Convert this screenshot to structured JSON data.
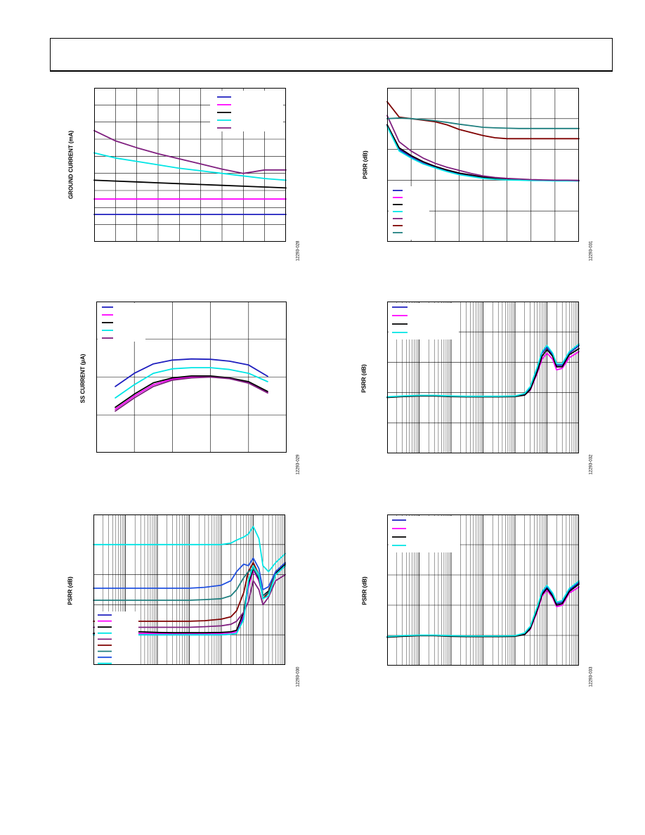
{
  "page": {
    "header_title": ""
  },
  "chart_data": [
    {
      "id": "ground-current",
      "type": "line",
      "title": "",
      "xlabel": "",
      "ylabel": "GROUND CURRENT (mA)",
      "figure_id": "12293-028",
      "xscale": "linear",
      "xlim": [
        0,
        9
      ],
      "ylim": [
        0,
        9
      ],
      "grid": true,
      "legend_position": "top-right",
      "x": [
        0,
        1,
        2,
        3,
        4,
        5,
        6,
        7,
        8,
        9
      ],
      "series": [
        {
          "color": "#1f1fbf",
          "values": [
            1.6,
            1.6,
            1.6,
            1.6,
            1.6,
            1.6,
            1.6,
            1.6,
            1.6,
            1.6
          ]
        },
        {
          "color": "#ff00ff",
          "values": [
            2.5,
            2.5,
            2.5,
            2.5,
            2.5,
            2.5,
            2.5,
            2.5,
            2.5,
            2.5
          ]
        },
        {
          "color": "#000000",
          "values": [
            3.6,
            3.55,
            3.5,
            3.45,
            3.4,
            3.35,
            3.3,
            3.25,
            3.2,
            3.15
          ]
        },
        {
          "color": "#00e5e5",
          "values": [
            5.2,
            4.9,
            4.7,
            4.5,
            4.3,
            4.15,
            4.0,
            3.85,
            3.7,
            3.6
          ]
        },
        {
          "color": "#7f1f7f",
          "values": [
            6.5,
            5.9,
            5.5,
            5.15,
            4.85,
            4.55,
            4.25,
            4.0,
            4.2,
            4.2
          ]
        }
      ]
    },
    {
      "id": "psrr-1",
      "type": "line",
      "title": "",
      "xlabel": "",
      "ylabel": "PSRR (dB)",
      "figure_id": "12293-031",
      "xscale": "linear",
      "xlim": [
        0,
        8
      ],
      "ylim": [
        0,
        5
      ],
      "grid": true,
      "legend_position": "bottom-left",
      "x": [
        0,
        0.5,
        1,
        1.5,
        2,
        2.5,
        3,
        3.5,
        4,
        4.5,
        5,
        5.5,
        6,
        6.5,
        7,
        7.5,
        8
      ],
      "series": [
        {
          "color": "#1f1fbf",
          "values": [
            3.8,
            3.0,
            2.75,
            2.55,
            2.42,
            2.3,
            2.2,
            2.15,
            2.08,
            2.05,
            2.03,
            2.01,
            2.0,
            2.0,
            1.99,
            1.99,
            1.98
          ]
        },
        {
          "color": "#ff00ff",
          "values": [
            3.8,
            3.05,
            2.8,
            2.6,
            2.45,
            2.33,
            2.23,
            2.17,
            2.1,
            2.06,
            2.04,
            2.02,
            2.01,
            2.0,
            2.0,
            1.99,
            1.99
          ]
        },
        {
          "color": "#000000",
          "values": [
            3.8,
            3.05,
            2.8,
            2.6,
            2.45,
            2.33,
            2.23,
            2.17,
            2.1,
            2.06,
            2.04,
            2.02,
            2.01,
            2.0,
            2.0,
            1.99,
            1.99
          ]
        },
        {
          "color": "#00e5e5",
          "values": [
            3.75,
            2.95,
            2.72,
            2.53,
            2.4,
            2.28,
            2.18,
            2.12,
            2.06,
            2.03,
            2.01,
            2.0,
            1.99,
            1.99,
            1.98,
            1.98,
            1.98
          ]
        },
        {
          "color": "#7f1f7f",
          "values": [
            4.1,
            3.25,
            2.95,
            2.72,
            2.55,
            2.42,
            2.32,
            2.22,
            2.14,
            2.09,
            2.06,
            2.04,
            2.02,
            2.01,
            2.0,
            2.0,
            1.99
          ]
        },
        {
          "color": "#7f0000",
          "values": [
            4.55,
            4.05,
            4.0,
            3.95,
            3.9,
            3.8,
            3.65,
            3.55,
            3.45,
            3.38,
            3.35,
            3.35,
            3.35,
            3.35,
            3.35,
            3.35,
            3.35
          ]
        },
        {
          "color": "#1f7f7f",
          "values": [
            4.0,
            4.02,
            4.0,
            3.97,
            3.93,
            3.88,
            3.82,
            3.77,
            3.72,
            3.7,
            3.69,
            3.68,
            3.68,
            3.68,
            3.68,
            3.68,
            3.68
          ]
        }
      ]
    },
    {
      "id": "ss-current",
      "type": "line",
      "title": "",
      "xlabel": "",
      "ylabel": "SS CURRENT (µA)",
      "figure_id": "12293-029",
      "xscale": "linear",
      "xlim": [
        0,
        5
      ],
      "ylim": [
        0,
        4
      ],
      "grid": true,
      "legend_position": "top-left",
      "x": [
        0.5,
        1,
        1.5,
        2,
        2.5,
        3,
        3.5,
        4,
        4.5
      ],
      "series": [
        {
          "color": "#1f1fbf",
          "values": [
            1.75,
            2.1,
            2.35,
            2.45,
            2.48,
            2.47,
            2.42,
            2.32,
            2.02
          ]
        },
        {
          "color": "#ff00ff",
          "values": [
            1.15,
            1.5,
            1.8,
            1.95,
            2.0,
            2.02,
            1.97,
            1.85,
            1.6
          ]
        },
        {
          "color": "#000000",
          "values": [
            1.2,
            1.55,
            1.85,
            1.98,
            2.03,
            2.03,
            1.98,
            1.88,
            1.62
          ]
        },
        {
          "color": "#00e5e5",
          "values": [
            1.45,
            1.8,
            2.1,
            2.22,
            2.25,
            2.25,
            2.2,
            2.1,
            1.88
          ]
        },
        {
          "color": "#7f1f7f",
          "values": [
            1.1,
            1.45,
            1.75,
            1.92,
            1.98,
            2.0,
            1.96,
            1.84,
            1.58
          ]
        }
      ]
    },
    {
      "id": "psrr-2",
      "type": "line",
      "title": "",
      "xlabel": "",
      "ylabel": "PSRR (dB)",
      "figure_id": "12293-032",
      "xscale": "log",
      "xlim": [
        10,
        10000000
      ],
      "ylim": [
        0,
        5
      ],
      "grid": true,
      "legend_position": "top-left",
      "x": [
        10,
        30,
        100,
        300,
        1000,
        3000,
        10000,
        30000,
        100000,
        200000,
        300000,
        500000,
        700000,
        1000000,
        1500000,
        2000000,
        3000000,
        5000000,
        10000000
      ],
      "series": [
        {
          "color": "#1f1fbf",
          "values": [
            1.85,
            1.88,
            1.9,
            1.9,
            1.88,
            1.87,
            1.87,
            1.87,
            1.88,
            1.95,
            2.15,
            2.8,
            3.3,
            3.5,
            3.25,
            2.9,
            2.9,
            3.3,
            3.55
          ]
        },
        {
          "color": "#ff00ff",
          "values": [
            1.85,
            1.88,
            1.9,
            1.9,
            1.88,
            1.87,
            1.87,
            1.87,
            1.88,
            1.92,
            2.08,
            2.65,
            3.1,
            3.3,
            3.1,
            2.75,
            2.8,
            3.15,
            3.35
          ]
        },
        {
          "color": "#000000",
          "values": [
            1.84,
            1.87,
            1.89,
            1.89,
            1.87,
            1.86,
            1.86,
            1.86,
            1.87,
            1.92,
            2.1,
            2.7,
            3.2,
            3.42,
            3.2,
            2.85,
            2.85,
            3.25,
            3.45
          ]
        },
        {
          "color": "#00e5e5",
          "values": [
            1.86,
            1.89,
            1.91,
            1.91,
            1.89,
            1.88,
            1.88,
            1.88,
            1.89,
            1.97,
            2.2,
            2.85,
            3.35,
            3.55,
            3.3,
            2.95,
            2.95,
            3.35,
            3.6
          ]
        }
      ]
    },
    {
      "id": "psrr-3",
      "type": "line",
      "title": "",
      "xlabel": "",
      "ylabel": "PSRR (dB)",
      "figure_id": "12293-030",
      "xscale": "log",
      "xlim": [
        10,
        10000000
      ],
      "ylim": [
        0,
        5
      ],
      "grid": true,
      "legend_position": "bottom-left",
      "x": [
        10,
        30,
        100,
        300,
        1000,
        3000,
        10000,
        30000,
        100000,
        200000,
        300000,
        500000,
        700000,
        1000000,
        1500000,
        2000000,
        3000000,
        5000000,
        10000000
      ],
      "series": [
        {
          "color": "#1f1fbf",
          "values": [
            1.0,
            1.0,
            1.0,
            1.0,
            1.0,
            1.0,
            1.0,
            1.0,
            1.0,
            1.02,
            1.05,
            1.6,
            2.6,
            3.2,
            2.8,
            2.3,
            2.4,
            3.0,
            3.3
          ]
        },
        {
          "color": "#ff00ff",
          "values": [
            1.05,
            1.05,
            1.05,
            1.05,
            1.05,
            1.05,
            1.05,
            1.05,
            1.05,
            1.07,
            1.1,
            1.7,
            2.6,
            3.15,
            2.8,
            2.3,
            2.45,
            3.0,
            3.3
          ]
        },
        {
          "color": "#000000",
          "values": [
            1.05,
            1.08,
            1.1,
            1.1,
            1.08,
            1.07,
            1.07,
            1.07,
            1.08,
            1.1,
            1.15,
            1.75,
            2.7,
            3.2,
            2.85,
            2.3,
            2.45,
            3.05,
            3.35
          ]
        },
        {
          "color": "#00e5e5",
          "values": [
            4.0,
            4.0,
            4.0,
            4.0,
            4.0,
            4.0,
            4.0,
            4.0,
            4.0,
            4.05,
            4.15,
            4.25,
            4.35,
            4.6,
            4.2,
            3.3,
            3.1,
            3.4,
            3.7
          ]
        },
        {
          "color": "#7f1f7f",
          "values": [
            1.25,
            1.25,
            1.25,
            1.25,
            1.25,
            1.25,
            1.25,
            1.27,
            1.3,
            1.35,
            1.45,
            1.75,
            2.1,
            2.8,
            2.5,
            2.0,
            2.25,
            2.8,
            3.0
          ]
        },
        {
          "color": "#7f0000",
          "values": [
            1.45,
            1.45,
            1.45,
            1.45,
            1.45,
            1.45,
            1.45,
            1.47,
            1.52,
            1.6,
            1.8,
            2.4,
            3.1,
            3.4,
            3.0,
            2.2,
            2.4,
            3.1,
            3.4
          ]
        },
        {
          "color": "#1f7f7f",
          "values": [
            2.15,
            2.15,
            2.15,
            2.15,
            2.15,
            2.15,
            2.15,
            2.17,
            2.2,
            2.3,
            2.5,
            2.9,
            3.1,
            3.2,
            2.9,
            2.3,
            2.4,
            3.0,
            3.3
          ]
        },
        {
          "color": "#2050e0",
          "values": [
            2.55,
            2.55,
            2.55,
            2.55,
            2.55,
            2.55,
            2.55,
            2.58,
            2.65,
            2.8,
            3.1,
            3.35,
            3.3,
            3.55,
            3.2,
            2.5,
            2.6,
            3.1,
            3.4
          ]
        },
        {
          "color": "#00e5e5",
          "values": [
            1.0,
            1.0,
            1.0,
            1.0,
            1.0,
            1.0,
            1.0,
            1.0,
            1.0,
            1.02,
            1.05,
            1.5,
            2.8,
            3.3,
            3.0,
            2.2,
            2.3,
            3.0,
            3.3
          ]
        }
      ]
    },
    {
      "id": "psrr-4",
      "type": "line",
      "title": "",
      "xlabel": "",
      "ylabel": "PSRR (dB)",
      "figure_id": "12293-033",
      "xscale": "log",
      "xlim": [
        10,
        10000000
      ],
      "ylim": [
        0,
        5
      ],
      "grid": true,
      "legend_position": "top-left",
      "x": [
        10,
        30,
        100,
        300,
        1000,
        3000,
        10000,
        30000,
        100000,
        200000,
        300000,
        500000,
        700000,
        1000000,
        1500000,
        2000000,
        3000000,
        5000000,
        10000000
      ],
      "series": [
        {
          "color": "#1f1fbf",
          "values": [
            0.95,
            0.98,
            1.0,
            1.0,
            0.98,
            0.97,
            0.97,
            0.97,
            0.98,
            1.05,
            1.25,
            1.9,
            2.4,
            2.6,
            2.35,
            2.05,
            2.1,
            2.5,
            2.75
          ]
        },
        {
          "color": "#ff00ff",
          "values": [
            0.95,
            0.98,
            1.0,
            1.0,
            0.98,
            0.97,
            0.97,
            0.97,
            0.98,
            1.03,
            1.2,
            1.8,
            2.3,
            2.5,
            2.25,
            1.95,
            2.0,
            2.4,
            2.6
          ]
        },
        {
          "color": "#000000",
          "values": [
            0.94,
            0.97,
            0.99,
            0.99,
            0.97,
            0.96,
            0.96,
            0.96,
            0.97,
            1.03,
            1.22,
            1.85,
            2.35,
            2.55,
            2.3,
            2.0,
            2.05,
            2.45,
            2.7
          ]
        },
        {
          "color": "#00e5e5",
          "values": [
            0.96,
            0.99,
            1.01,
            1.01,
            0.99,
            0.98,
            0.98,
            0.98,
            0.99,
            1.08,
            1.3,
            1.95,
            2.45,
            2.65,
            2.4,
            2.1,
            2.15,
            2.55,
            2.8
          ]
        }
      ]
    }
  ]
}
